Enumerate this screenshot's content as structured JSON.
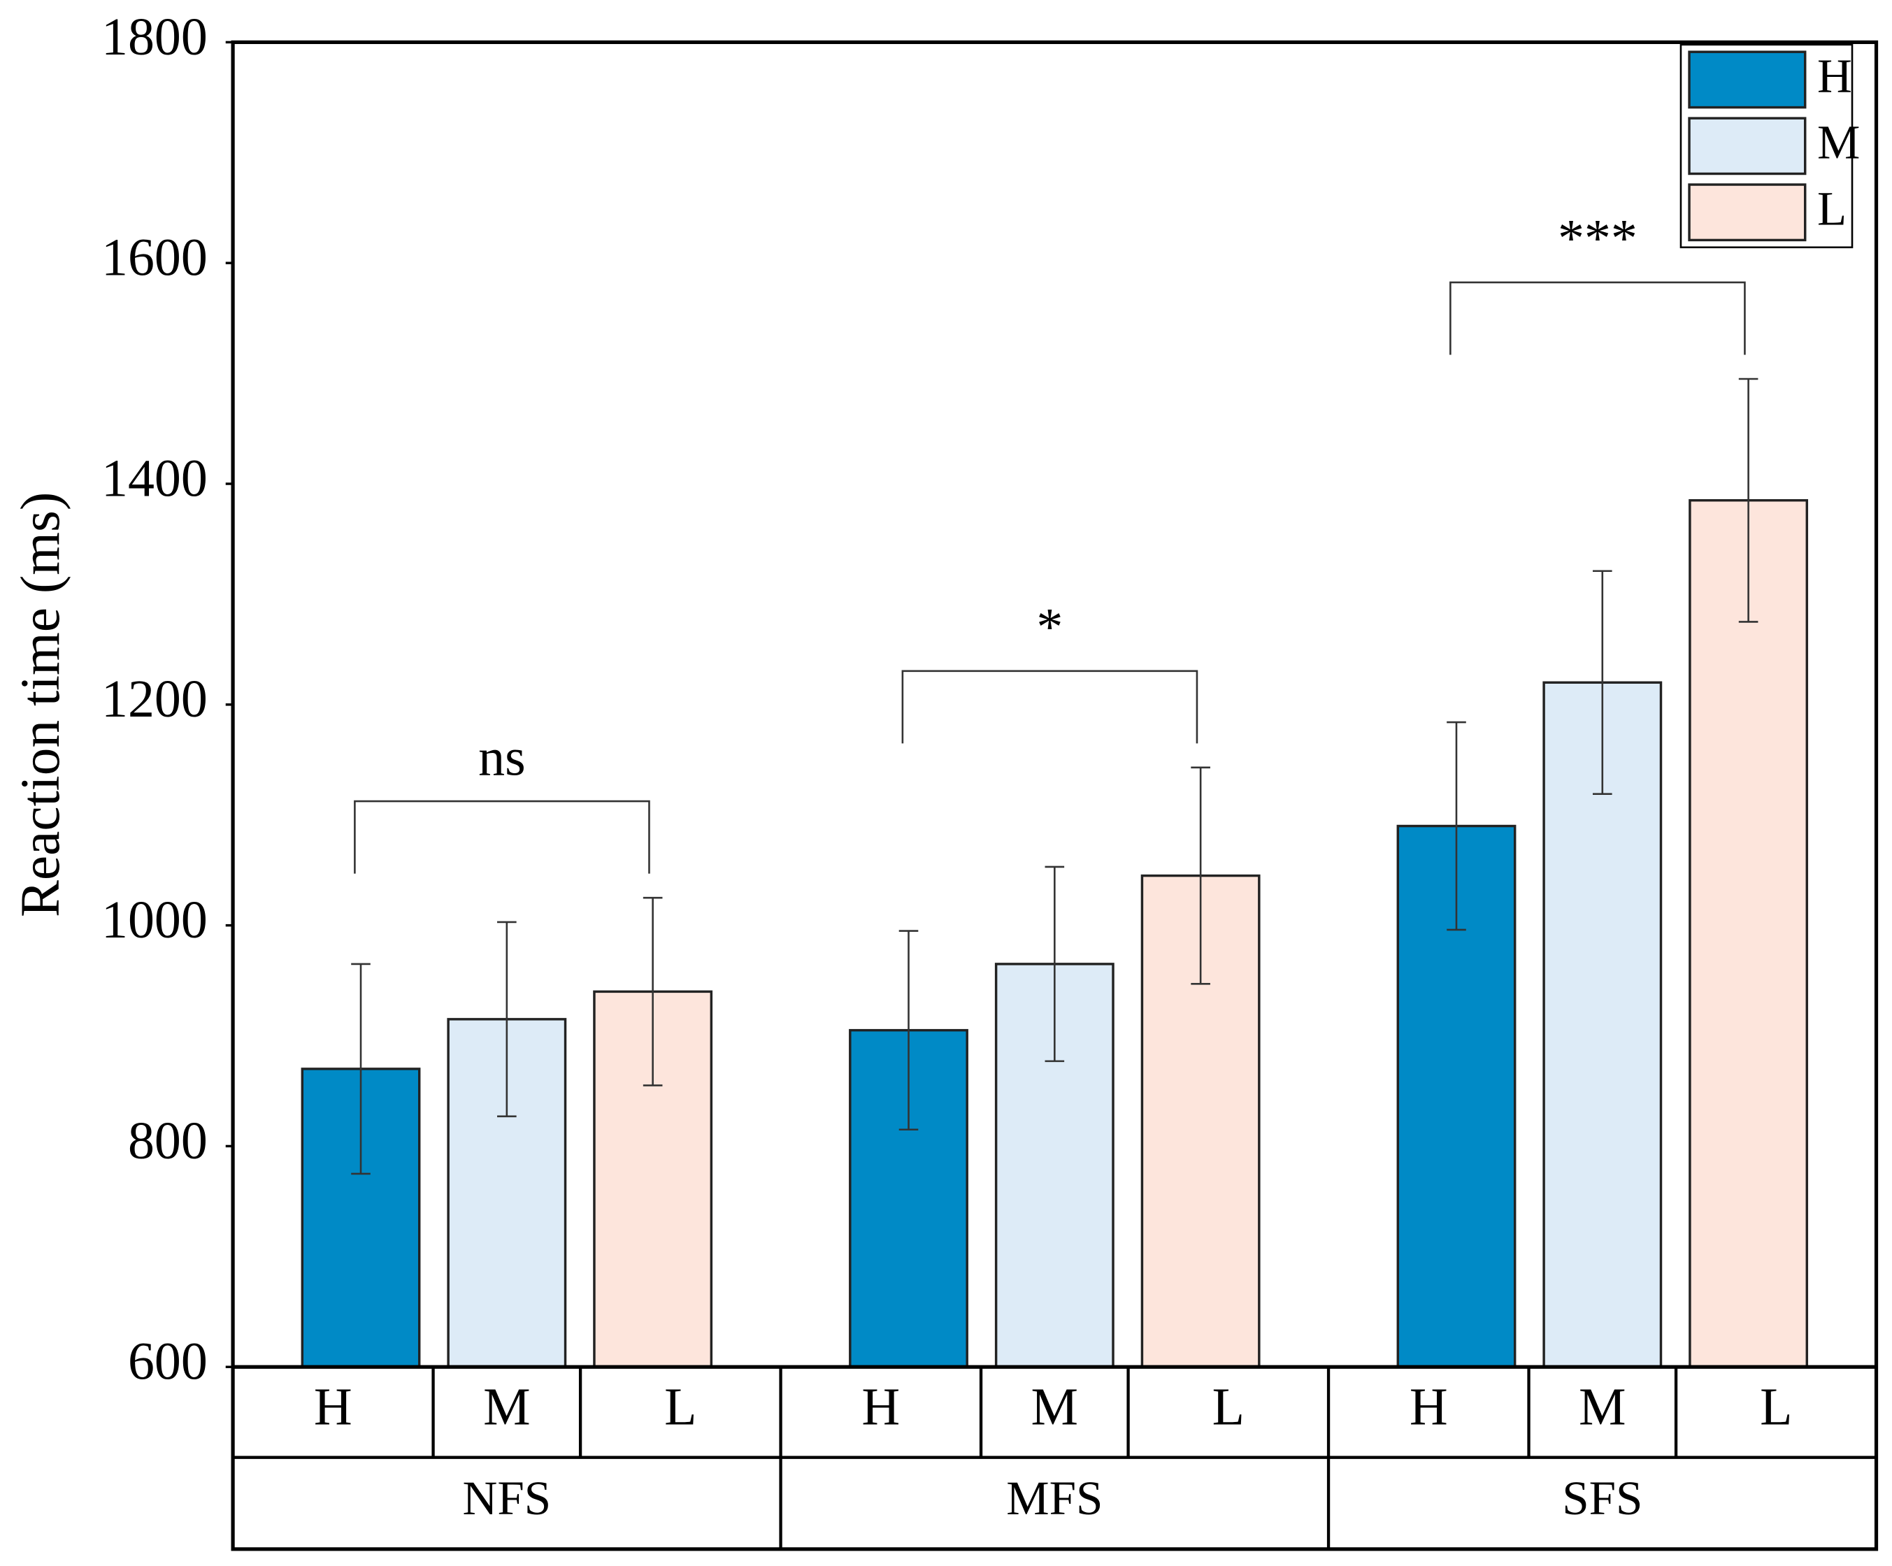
{
  "chart_data": {
    "type": "bar",
    "y_label": "Reaction time (ms)",
    "categories": [
      "NFS",
      "MFS",
      "SFS"
    ],
    "series": [
      {
        "name": "H",
        "color": "#008ac6",
        "values": [
          870,
          905,
          1090
        ],
        "errors": [
          95,
          90,
          94
        ]
      },
      {
        "name": "M",
        "color": "#ddebf7",
        "values": [
          915,
          965,
          1220
        ],
        "errors": [
          88,
          88,
          101
        ]
      },
      {
        "name": "L",
        "color": "#fde5dc",
        "values": [
          940,
          1045,
          1385
        ],
        "errors": [
          85,
          98,
          110
        ]
      }
    ],
    "annotations": [
      {
        "text": "ns"
      },
      {
        "text": "*"
      },
      {
        "text": "***"
      }
    ],
    "ylim": [
      600,
      1800
    ],
    "yticks": [
      600,
      800,
      1000,
      1200,
      1400,
      1600,
      1800
    ],
    "legend": "top-right"
  }
}
